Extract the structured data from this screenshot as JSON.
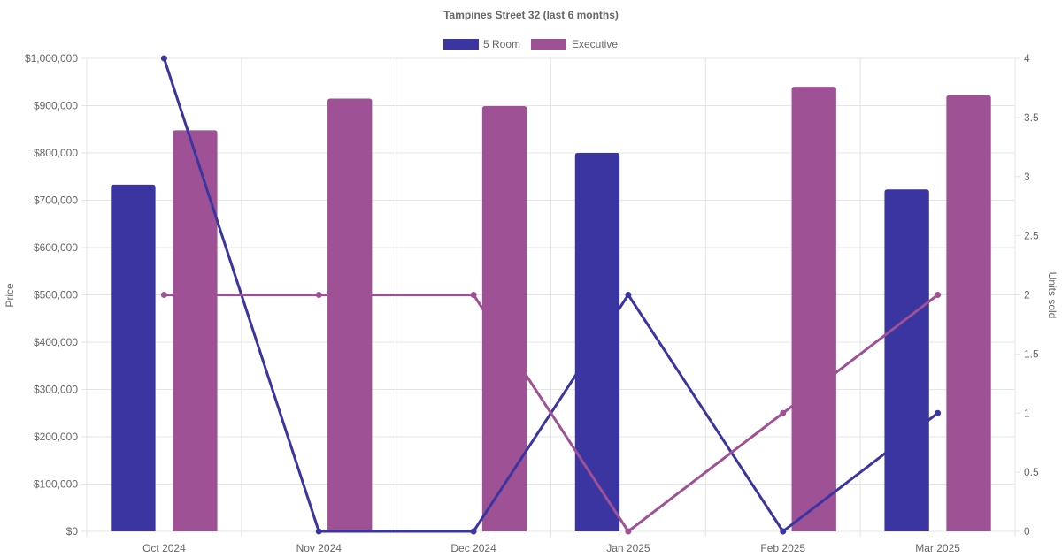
{
  "chart_data": {
    "type": "bar",
    "title": "Tampines Street 32 (last 6 months)",
    "categories": [
      "Oct 2024",
      "Nov 2024",
      "Dec 2024",
      "Jan 2025",
      "Feb 2025",
      "Mar 2025"
    ],
    "ylabel": "Price",
    "y2label": "Units sold",
    "ylim": [
      0,
      1000000
    ],
    "y2lim": [
      0,
      4
    ],
    "yticks": [
      "$0",
      "$100,000",
      "$200,000",
      "$300,000",
      "$400,000",
      "$500,000",
      "$600,000",
      "$700,000",
      "$800,000",
      "$900,000",
      "$1,000,000"
    ],
    "y2ticks": [
      "0",
      "0.5",
      "1",
      "1.5",
      "2",
      "2.5",
      "3",
      "3.5",
      "4"
    ],
    "legend_position": "top-center",
    "grid": true,
    "series": [
      {
        "name": "5 Room",
        "type": "bar",
        "axis": "price",
        "color": "#3a35a1",
        "values": [
          733000,
          null,
          null,
          800000,
          null,
          723000
        ]
      },
      {
        "name": "Executive",
        "type": "bar",
        "axis": "price",
        "color": "#9e5195",
        "values": [
          848000,
          915000,
          899000,
          null,
          940000,
          922000
        ]
      },
      {
        "type": "line",
        "axis": "units",
        "color": "#3a35a1",
        "values": [
          4,
          0,
          0,
          2,
          0,
          1
        ]
      },
      {
        "type": "line",
        "axis": "units",
        "color": "#9e5195",
        "values": [
          2,
          2,
          2,
          0,
          1,
          2
        ]
      }
    ]
  }
}
